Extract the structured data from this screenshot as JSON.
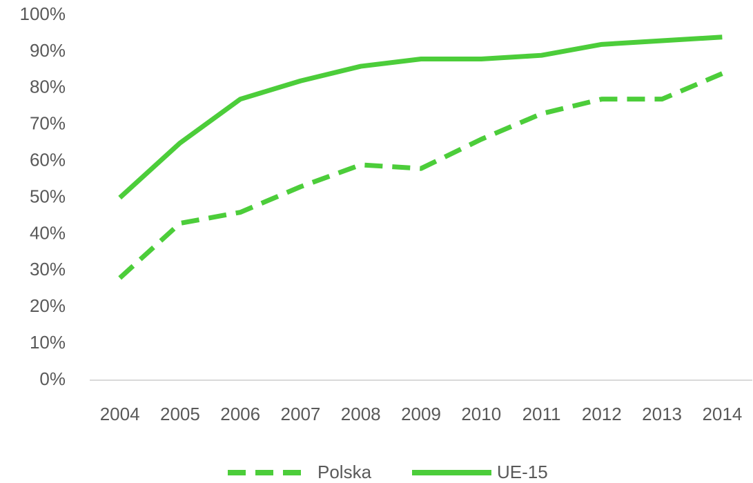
{
  "chart_data": {
    "type": "line",
    "categories": [
      "2004",
      "2005",
      "2006",
      "2007",
      "2008",
      "2009",
      "2010",
      "2011",
      "2012",
      "2013",
      "2014"
    ],
    "series": [
      {
        "name": "Polska",
        "color": "#4ccd3a",
        "dash": true,
        "values": [
          28,
          43,
          46,
          53,
          59,
          58,
          66,
          73,
          77,
          77,
          84
        ]
      },
      {
        "name": "UE-15",
        "color": "#4ccd3a",
        "dash": false,
        "values": [
          50,
          65,
          77,
          82,
          86,
          88,
          88,
          89,
          92,
          93,
          94
        ]
      }
    ],
    "ylim": [
      0,
      100
    ],
    "yticks": [
      {
        "value": 0,
        "label": "0%"
      },
      {
        "value": 10,
        "label": "10%"
      },
      {
        "value": 20,
        "label": "20%"
      },
      {
        "value": 30,
        "label": "30%"
      },
      {
        "value": 40,
        "label": "40%"
      },
      {
        "value": 50,
        "label": "50%"
      },
      {
        "value": 60,
        "label": "60%"
      },
      {
        "value": 70,
        "label": "70%"
      },
      {
        "value": 80,
        "label": "80%"
      },
      {
        "value": 90,
        "label": "90%"
      },
      {
        "value": 100,
        "label": "100%"
      }
    ],
    "grid": false,
    "legend": "bottom"
  }
}
